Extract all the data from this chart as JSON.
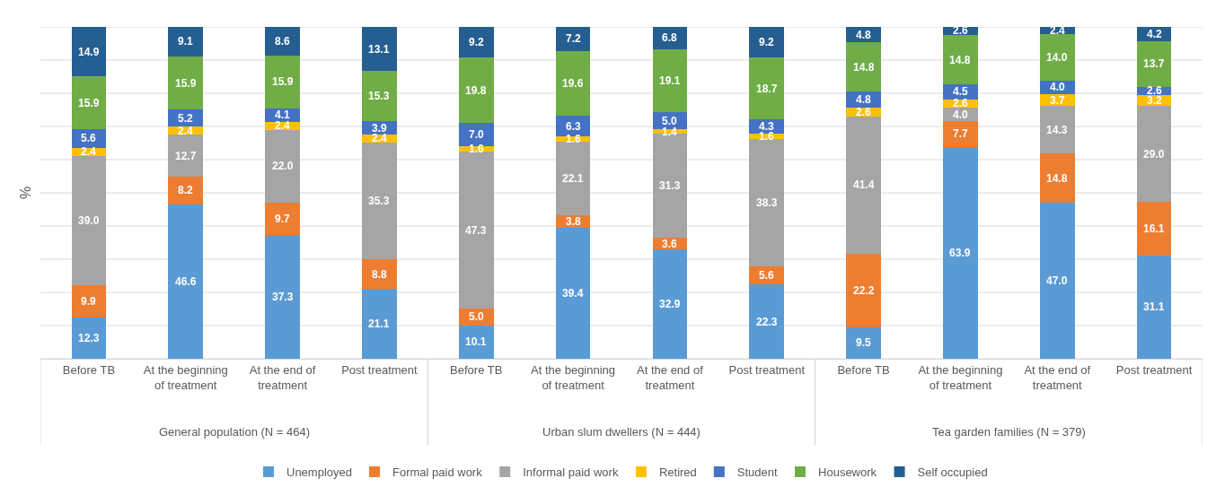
{
  "chart_data": {
    "type": "bar",
    "stacked": true,
    "ylabel": "%",
    "categories": [
      "Before TB",
      "At the beginning of treatment",
      "At the end of treatment",
      "Post treatment",
      "Before TB",
      "At the beginning of treatment",
      "At the end of treatment",
      "Post treatment",
      "Before TB",
      "At the beginning of treatment",
      "At the end of treatment",
      "Post treatment"
    ],
    "annotations": [
      "General population (N = 464)",
      "Urban slum dwellers (N = 444)",
      "Tea garden families (N = 379)"
    ],
    "series": [
      {
        "name": "Unemployed",
        "color": "#5b9bd5",
        "values": [
          12.3,
          46.6,
          37.3,
          21.1,
          10.1,
          39.4,
          32.9,
          22.3,
          9.5,
          63.9,
          47.0,
          31.1
        ],
        "value_labels": [
          "12.3",
          "46.6",
          "37.3",
          "21.1",
          "10.1",
          "39.4",
          "32.9",
          "22.3",
          "9.5",
          "63.9",
          "47.0",
          "31.1"
        ]
      },
      {
        "name": "Formal paid work",
        "color": "#ed7d31",
        "values": [
          9.9,
          8.2,
          9.7,
          8.8,
          5.0,
          3.8,
          3.6,
          5.6,
          22.2,
          7.7,
          14.8,
          16.1
        ],
        "value_labels": [
          "9.9",
          "8.2",
          "9.7",
          "8.8",
          "5.0",
          "3.8",
          "3.6",
          "5.6",
          "22.2",
          "7.7",
          "14.8",
          "16.1"
        ]
      },
      {
        "name": "Informal paid work",
        "color": "#a5a5a5",
        "values": [
          39.0,
          12.7,
          22.0,
          35.3,
          47.3,
          22.1,
          31.3,
          38.3,
          41.4,
          4.0,
          14.3,
          29.0
        ],
        "value_labels": [
          "39.0",
          "12.7",
          "22.0",
          "35.3",
          "47.3",
          "22.1",
          "31.3",
          "38.3",
          "41.4",
          "4.0",
          "14.3",
          "29.0"
        ]
      },
      {
        "name": "Retired",
        "color": "#ffc000",
        "values": [
          2.4,
          2.4,
          2.4,
          2.4,
          1.6,
          1.6,
          1.4,
          1.6,
          2.6,
          2.6,
          3.7,
          3.2
        ],
        "value_labels": [
          "2.4",
          "2.4",
          "2.4",
          "2.4",
          "1.6",
          "1.6",
          "1.4",
          "1.6",
          "2.6",
          "2.6",
          "3.7",
          "3.2"
        ]
      },
      {
        "name": "Student",
        "color": "#4472c4",
        "values": [
          5.6,
          5.2,
          4.1,
          3.9,
          7.0,
          6.3,
          5.0,
          4.3,
          4.8,
          4.5,
          4.0,
          2.6
        ],
        "value_labels": [
          "5.6",
          "5.2",
          "4.1",
          "3.9",
          "7.0",
          "6.3",
          "5.0",
          "4.3",
          "4.8",
          "4.5",
          "4.0",
          "2.6"
        ]
      },
      {
        "name": "Housework",
        "color": "#70ad47",
        "values": [
          15.9,
          15.9,
          15.9,
          15.3,
          19.8,
          19.6,
          19.1,
          18.7,
          14.8,
          14.8,
          14.0,
          13.7
        ],
        "value_labels": [
          "15.9",
          "15.9",
          "15.9",
          "15.3",
          "19.8",
          "19.6",
          "19.1",
          "18.7",
          "14.8",
          "14.8",
          "14.0",
          "13.7"
        ]
      },
      {
        "name": "Self occupied",
        "color": "#255e91",
        "values": [
          14.9,
          9.1,
          8.6,
          13.1,
          9.2,
          7.2,
          6.8,
          9.2,
          4.8,
          2.6,
          2.4,
          4.2
        ],
        "value_labels": [
          "14.9",
          "9.1",
          "8.6",
          "13.1",
          "9.2",
          "7.2",
          "6.8",
          "9.2",
          "4.8",
          "2.6",
          "2.4",
          "4.2"
        ]
      }
    ],
    "ylim": [
      0,
      100
    ],
    "yticks": [
      {
        "value": 0,
        "label": null
      },
      {
        "value": 10,
        "label": null
      },
      {
        "value": 20,
        "label": null
      },
      {
        "value": 30,
        "label": null
      },
      {
        "value": 40,
        "label": null
      },
      {
        "value": 50,
        "label": null
      },
      {
        "value": 60,
        "label": null
      },
      {
        "value": 70,
        "label": null
      },
      {
        "value": 80,
        "label": null
      },
      {
        "value": 90,
        "label": null
      },
      {
        "value": 100,
        "label": null
      }
    ],
    "tick_labels": "x",
    "grid": "y",
    "legend": "bottom",
    "data_labels": true
  }
}
